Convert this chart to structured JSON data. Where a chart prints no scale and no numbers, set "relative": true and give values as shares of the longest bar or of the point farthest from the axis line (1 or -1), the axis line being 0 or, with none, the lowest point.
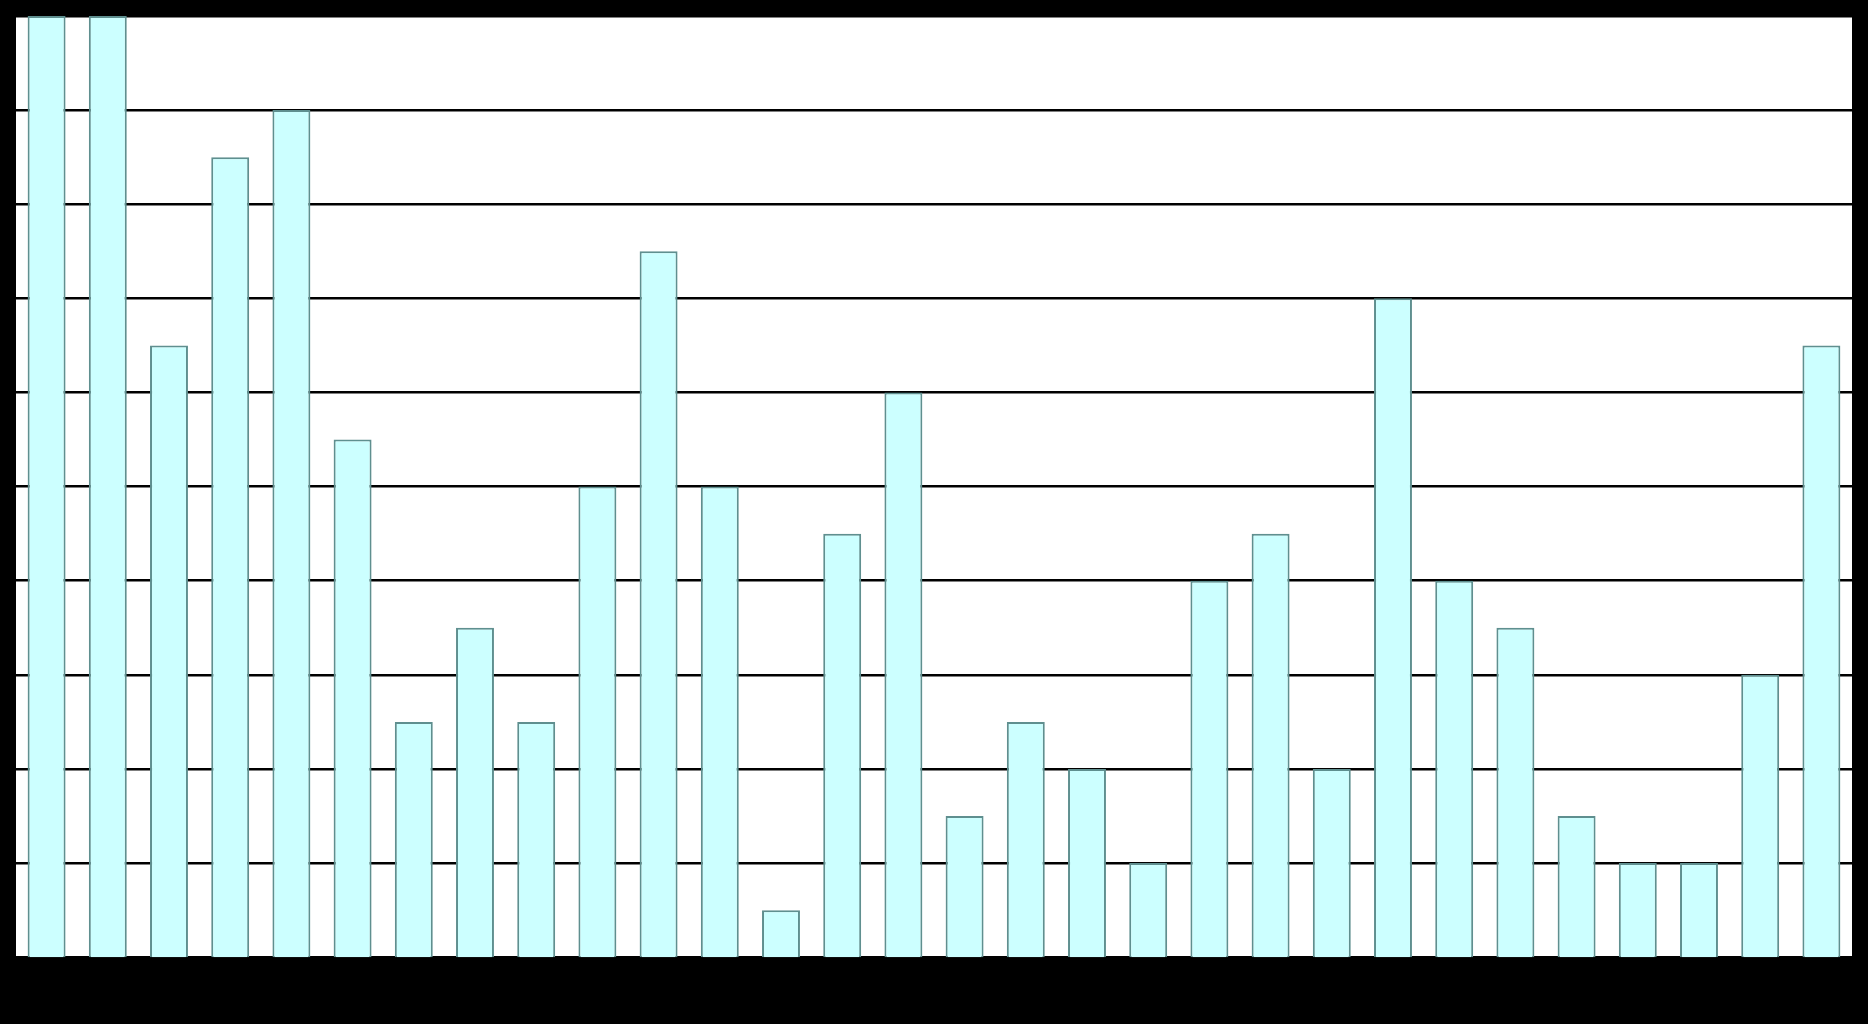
{
  "chart_data": {
    "type": "bar",
    "relative": true,
    "categories": [
      null,
      null,
      null,
      null,
      null,
      null,
      null,
      null,
      null,
      null,
      null,
      null,
      null,
      null,
      null,
      null,
      null,
      null,
      null,
      null,
      null,
      null,
      null,
      null,
      null,
      null,
      null,
      null,
      null,
      null
    ],
    "values": [
      1,
      1,
      0.65,
      0.85,
      0.9,
      0.55,
      0.25,
      0.35,
      0.25,
      0.5,
      0.75,
      0.5,
      0.05,
      0.45,
      0.6,
      0.15,
      0.25,
      0.2,
      0.1,
      0.4,
      0.45,
      0.2,
      0.7,
      0.4,
      0.35,
      0.15,
      0.1,
      0.1,
      0.3,
      0.65
    ],
    "color": "#ccffff",
    "grid": "y",
    "legend": false
  }
}
